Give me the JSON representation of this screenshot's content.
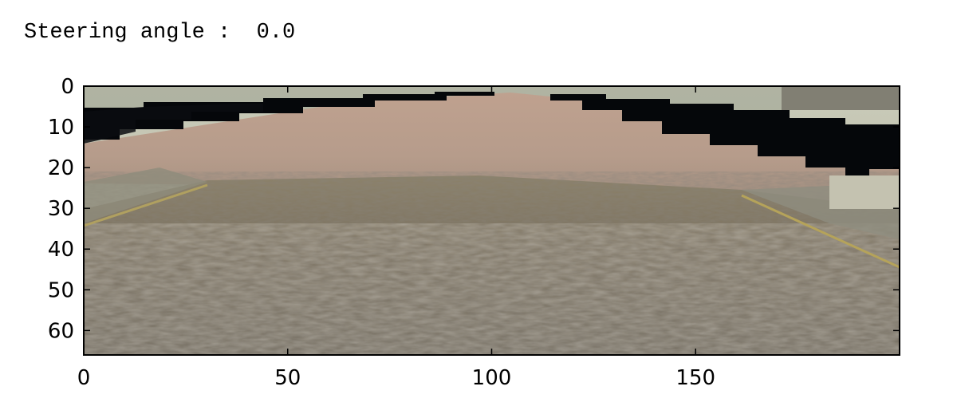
{
  "output": {
    "label": "Steering angle :",
    "value": "0.0"
  },
  "chart_data": {
    "type": "image",
    "title": "",
    "xlabel": "",
    "ylabel": "",
    "image_width": 200,
    "image_height": 66,
    "xlim": [
      0,
      200
    ],
    "ylim": [
      66,
      0
    ],
    "xticks": [
      0,
      50,
      100,
      150
    ],
    "yticks": [
      0,
      10,
      20,
      30,
      40,
      50,
      60
    ],
    "grid": false,
    "content": "road camera frame: dark gravel road, pale sandy horizon, black wedge-shaped masked regions in upper corners, yellow lane edge lines at sides"
  }
}
